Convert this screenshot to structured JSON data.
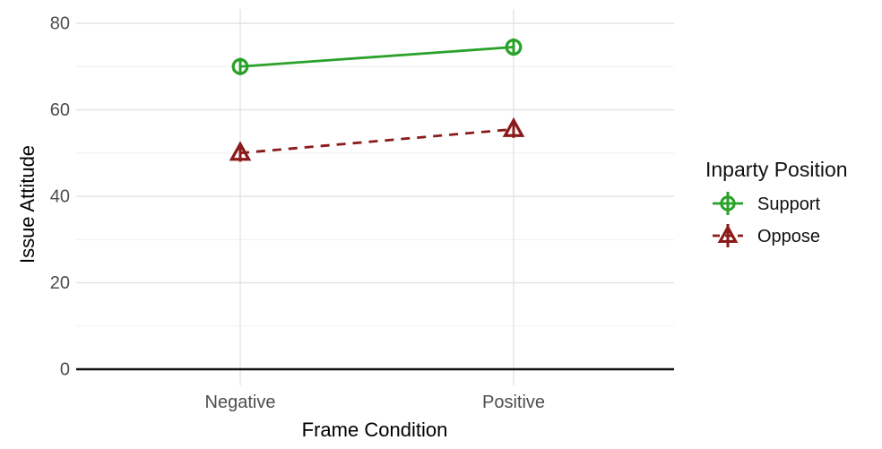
{
  "chart_data": {
    "type": "line",
    "title": "",
    "xlabel": "Frame Condition",
    "ylabel": "Issue Attitude",
    "categories": [
      "Negative",
      "Positive"
    ],
    "ytick_labels": [
      "80",
      "60",
      "40",
      "20",
      "0"
    ],
    "yticks": [
      80,
      60,
      40,
      20,
      0
    ],
    "grid_minor_y": [
      70,
      50,
      30,
      10
    ],
    "ylim": [
      0,
      84
    ],
    "grid": "major+minor light gray on white, legend right",
    "legend_title": "Inparty Position",
    "series": [
      {
        "name": "Support",
        "values": [
          70,
          74.5
        ],
        "ci_low": [
          68,
          72.5
        ],
        "ci_high": [
          72,
          76.5
        ],
        "color": "#2aa22a",
        "marker": "circle-open",
        "line": "solid"
      },
      {
        "name": "Oppose",
        "values": [
          50,
          55.5
        ],
        "ci_low": [
          48,
          53.5
        ],
        "ci_high": [
          52,
          57.5
        ],
        "color": "#8b1a1a",
        "marker": "triangle-open",
        "line": "dashed"
      }
    ],
    "colors": {
      "baseline": "#111111",
      "grid_major": "#e3e3e3",
      "grid_minor": "#efefef",
      "tick_label": "#4d4d4d"
    }
  }
}
